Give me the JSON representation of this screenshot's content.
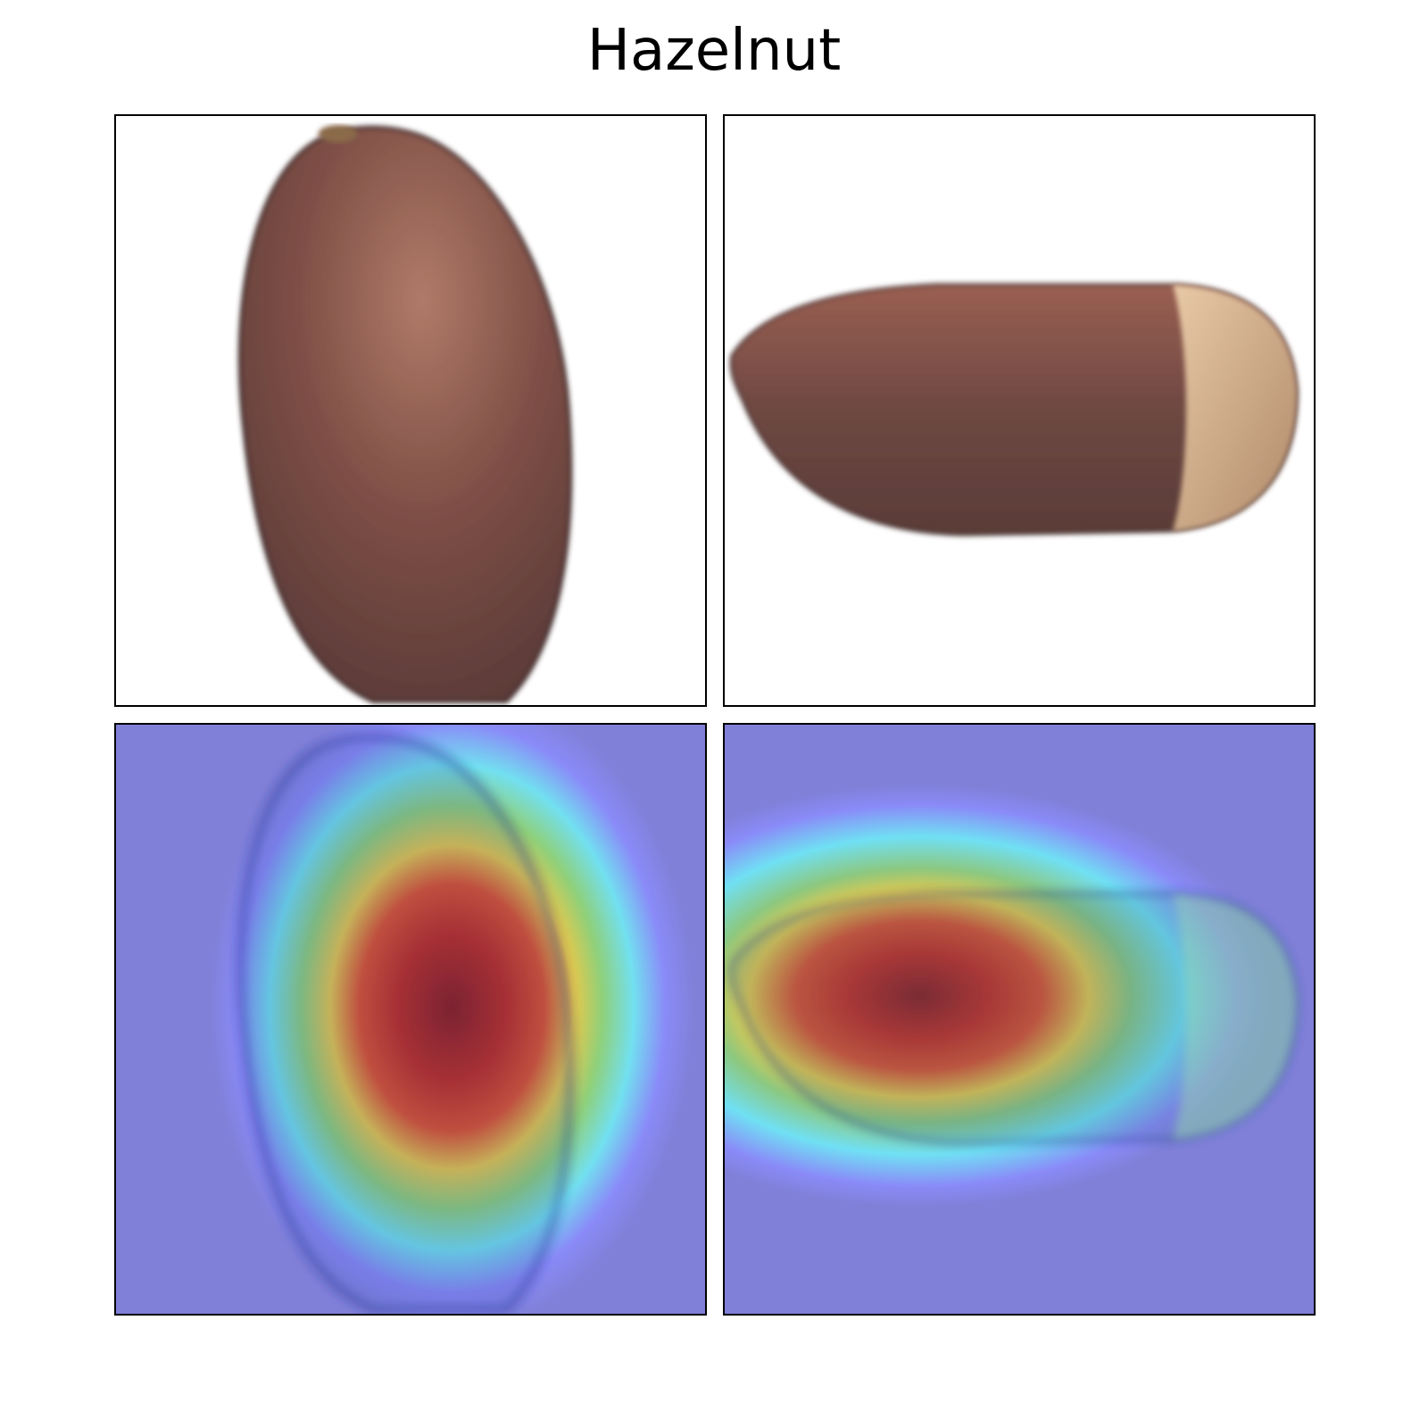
{
  "title": "Hazelnut",
  "colors": {
    "nut_brown": "#7a4a42",
    "nut_tip": "#d9b48f",
    "heat_background": "#8080d8",
    "heat_hot": "#9c1c1c"
  },
  "panels": [
    {
      "name": "original-vertical-hazelnut",
      "kind": "photo"
    },
    {
      "name": "original-horizontal-hazelnut",
      "kind": "photo"
    },
    {
      "name": "heatmap-vertical-hazelnut",
      "kind": "heatmap-overlay"
    },
    {
      "name": "heatmap-horizontal-hazelnut",
      "kind": "heatmap-overlay"
    }
  ]
}
